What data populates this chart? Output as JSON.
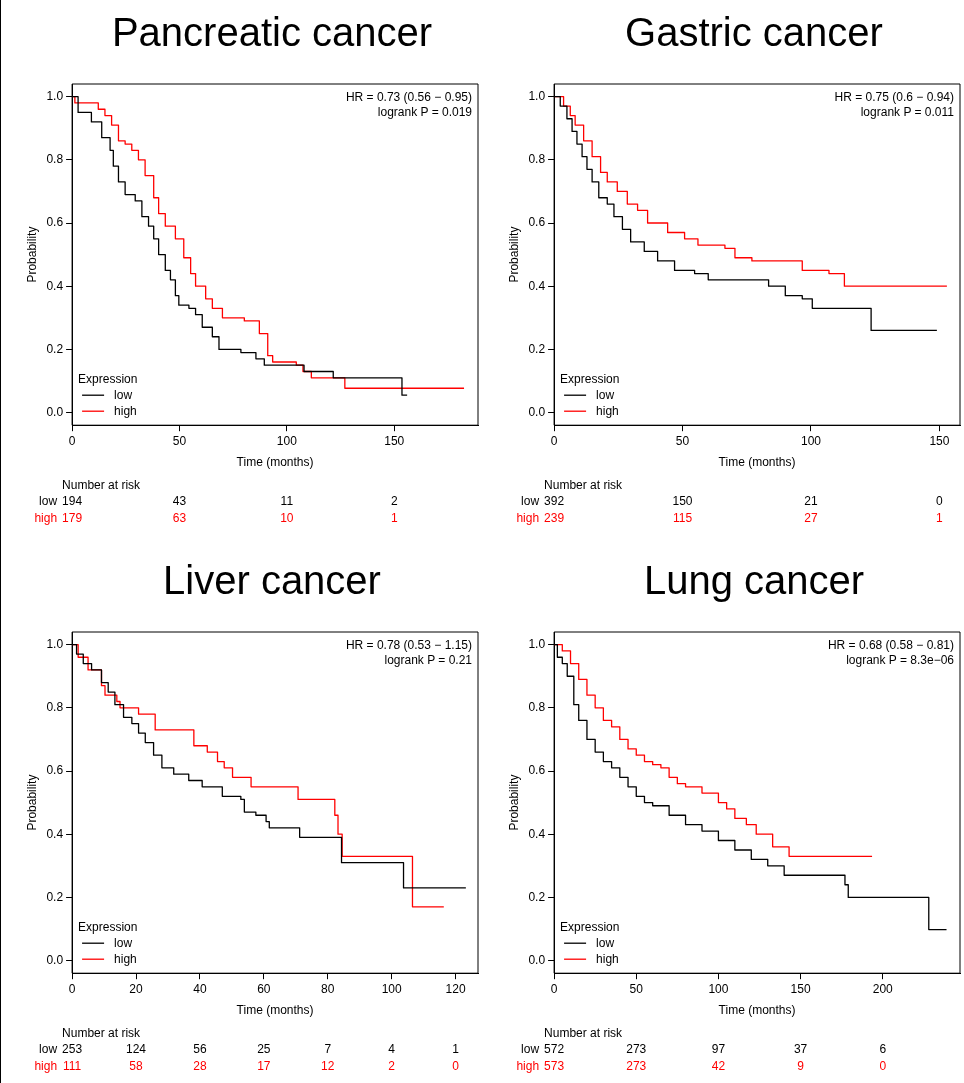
{
  "chart_data": [
    {
      "type": "step",
      "title": "Pancreatic cancer",
      "xlabel": "Time (months)",
      "ylabel": "Probability",
      "legend_title": "Expression",
      "legend": "bottom left",
      "xlim": [
        0,
        189
      ],
      "xticks": [
        0,
        50,
        100,
        150
      ],
      "ylim": [
        -0.04,
        1.04
      ],
      "yticks": [
        {
          "value": 0,
          "label": "0.0"
        },
        {
          "value": 0.2,
          "label": "0.2"
        },
        {
          "value": 0.4,
          "label": "0.4"
        },
        {
          "value": 0.6,
          "label": "0.6"
        },
        {
          "value": 0.8,
          "label": "0.8"
        },
        {
          "value": 1,
          "label": "1.0"
        }
      ],
      "series": [
        {
          "name": "low",
          "color": "#000000",
          "x": [
            0,
            2.8,
            9,
            13.8,
            17.7,
            19.2,
            21.6,
            24.7,
            29.4,
            32.5,
            35.6,
            38,
            40.3,
            43.4,
            45.8,
            48.1,
            49.7,
            54.4,
            57.5,
            60.6,
            65.3,
            68.4,
            78.6,
            85.6,
            89.5,
            108,
            121.6,
            153.6,
            156
          ],
          "values": [
            1,
            0.95,
            0.92,
            0.87,
            0.83,
            0.78,
            0.73,
            0.69,
            0.67,
            0.62,
            0.59,
            0.55,
            0.5,
            0.45,
            0.42,
            0.37,
            0.34,
            0.33,
            0.31,
            0.27,
            0.24,
            0.2,
            0.19,
            0.17,
            0.15,
            0.13,
            0.11,
            0.055,
            0.055
          ]
        },
        {
          "name": "high",
          "color": "#ff0000",
          "x": [
            0,
            1.3,
            12.2,
            15.3,
            18.4,
            21.6,
            24.7,
            27.8,
            30.9,
            34,
            38,
            40.3,
            43.4,
            48.1,
            52,
            55.2,
            57.5,
            62.2,
            65.3,
            70,
            80.2,
            87.2,
            91.1,
            93.4,
            104.4,
            107.5,
            111.4,
            127,
            182.5
          ],
          "values": [
            1,
            0.98,
            0.96,
            0.94,
            0.91,
            0.86,
            0.85,
            0.83,
            0.8,
            0.75,
            0.68,
            0.63,
            0.59,
            0.55,
            0.49,
            0.44,
            0.4,
            0.36,
            0.33,
            0.3,
            0.29,
            0.25,
            0.18,
            0.16,
            0.15,
            0.13,
            0.11,
            0.077,
            0.077
          ]
        }
      ],
      "annotations": [
        "HR = 0.73 (0.56 − 0.95)",
        "logrank P = 0.019",
        "Number at risk",
        "194",
        "43",
        "11",
        "2",
        "179",
        "63",
        "10",
        "1"
      ]
    },
    {
      "type": "step",
      "title": "Gastric cancer",
      "xlabel": "Time (months)",
      "ylabel": "Probability",
      "legend_title": "Expression",
      "legend": "bottom left",
      "xlim": [
        0,
        158
      ],
      "xticks": [
        0,
        50,
        100,
        150
      ],
      "ylim": [
        -0.04,
        1.04
      ],
      "yticks": [
        {
          "value": 0,
          "label": "0.0"
        },
        {
          "value": 0.2,
          "label": "0.2"
        },
        {
          "value": 0.4,
          "label": "0.4"
        },
        {
          "value": 0.6,
          "label": "0.6"
        },
        {
          "value": 0.8,
          "label": "0.8"
        },
        {
          "value": 1,
          "label": "1.0"
        }
      ],
      "series": [
        {
          "name": "low",
          "color": "#000000",
          "x": [
            0,
            2.4,
            5,
            7,
            8.9,
            10.9,
            12.8,
            14.8,
            17.4,
            20.7,
            23.3,
            26.6,
            29.8,
            35.1,
            40.3,
            46.9,
            54.7,
            60,
            77,
            83.5,
            90,
            96.6,
            100.5,
            123.4,
            149
          ],
          "values": [
            1,
            0.97,
            0.93,
            0.89,
            0.85,
            0.81,
            0.77,
            0.73,
            0.68,
            0.66,
            0.62,
            0.58,
            0.54,
            0.51,
            0.48,
            0.45,
            0.44,
            0.42,
            0.42,
            0.4,
            0.37,
            0.36,
            0.33,
            0.26,
            0.26
          ]
        },
        {
          "name": "high",
          "color": "#ff0000",
          "x": [
            0,
            3.7,
            6.3,
            8.2,
            11.5,
            14.8,
            18.1,
            20.7,
            24.6,
            28.5,
            32.5,
            36.4,
            44.2,
            50.8,
            56,
            66.5,
            70.4,
            77,
            96.6,
            107,
            113,
            152.9
          ],
          "values": [
            1,
            0.97,
            0.94,
            0.91,
            0.86,
            0.81,
            0.76,
            0.73,
            0.7,
            0.66,
            0.64,
            0.6,
            0.57,
            0.55,
            0.53,
            0.52,
            0.49,
            0.48,
            0.45,
            0.44,
            0.4,
            0.4
          ]
        }
      ],
      "annotations": [
        "HR = 0.75 (0.6 − 0.94)",
        "logrank P = 0.011",
        "Number at risk",
        "392",
        "150",
        "21",
        "0",
        "239",
        "115",
        "27",
        "1"
      ]
    },
    {
      "type": "step",
      "title": "Liver cancer",
      "xlabel": "Time (months)",
      "ylabel": "Probability",
      "legend_title": "Expression",
      "legend": "bottom left",
      "xlim": [
        0,
        127
      ],
      "xticks": [
        0,
        20,
        40,
        60,
        80,
        100,
        120
      ],
      "ylim": [
        -0.04,
        1.04
      ],
      "yticks": [
        {
          "value": 0,
          "label": "0.0"
        },
        {
          "value": 0.2,
          "label": "0.2"
        },
        {
          "value": 0.4,
          "label": "0.4"
        },
        {
          "value": 0.6,
          "label": "0.6"
        },
        {
          "value": 0.8,
          "label": "0.8"
        },
        {
          "value": 1,
          "label": "1.0"
        }
      ],
      "series": [
        {
          "name": "low",
          "color": "#000000",
          "x": [
            0,
            1.4,
            3.5,
            6.1,
            9.2,
            11.3,
            13.4,
            16.1,
            18.7,
            20.8,
            22.9,
            25.5,
            28.1,
            31.8,
            36.5,
            40.7,
            47,
            52.8,
            53.9,
            57.5,
            60.7,
            61.7,
            71.2,
            84.3,
            103.7,
            123.2
          ],
          "values": [
            1,
            0.97,
            0.94,
            0.92,
            0.88,
            0.85,
            0.81,
            0.77,
            0.75,
            0.72,
            0.69,
            0.65,
            0.61,
            0.59,
            0.57,
            0.55,
            0.52,
            0.51,
            0.47,
            0.46,
            0.44,
            0.42,
            0.39,
            0.31,
            0.23,
            0.23
          ]
        },
        {
          "name": "high",
          "color": "#ff0000",
          "x": [
            0,
            1.9,
            5,
            9.2,
            10.3,
            14,
            15,
            20.8,
            26,
            38.1,
            42.3,
            45.5,
            47.6,
            50.2,
            56,
            70.7,
            82.2,
            83.2,
            84.5,
            106.5,
            116.3
          ],
          "values": [
            1,
            0.96,
            0.92,
            0.87,
            0.84,
            0.82,
            0.8,
            0.78,
            0.73,
            0.68,
            0.66,
            0.63,
            0.61,
            0.58,
            0.55,
            0.51,
            0.46,
            0.4,
            0.33,
            0.17,
            0.17
          ]
        }
      ],
      "annotations": [
        "HR = 0.78 (0.53 − 1.15)",
        "logrank P = 0.21",
        "Number at risk",
        "253",
        "124",
        "56",
        "25",
        "7",
        "4",
        "1",
        "111",
        "58",
        "28",
        "17",
        "12",
        "2",
        "0"
      ]
    },
    {
      "type": "step",
      "title": "Lung cancer",
      "xlabel": "Time (months)",
      "ylabel": "Probability",
      "legend_title": "Expression",
      "legend": "bottom left",
      "xlim": [
        0,
        247
      ],
      "xticks": [
        0,
        50,
        100,
        150,
        200
      ],
      "ylim": [
        -0.04,
        1.04
      ],
      "yticks": [
        {
          "value": 0,
          "label": "0.0"
        },
        {
          "value": 0.2,
          "label": "0.2"
        },
        {
          "value": 0.4,
          "label": "0.4"
        },
        {
          "value": 0.6,
          "label": "0.6"
        },
        {
          "value": 0.8,
          "label": "0.8"
        },
        {
          "value": 1,
          "label": "1.0"
        }
      ],
      "series": [
        {
          "name": "low",
          "color": "#000000",
          "x": [
            0,
            2,
            5,
            8,
            12,
            15,
            20,
            25,
            30,
            35,
            40,
            45,
            50,
            55,
            60,
            70,
            80,
            90,
            100,
            110,
            120,
            130,
            140,
            175,
            177,
            179,
            228,
            238.8
          ],
          "values": [
            1,
            0.96,
            0.94,
            0.9,
            0.81,
            0.76,
            0.7,
            0.66,
            0.63,
            0.61,
            0.58,
            0.55,
            0.52,
            0.5,
            0.49,
            0.46,
            0.43,
            0.41,
            0.38,
            0.35,
            0.32,
            0.3,
            0.27,
            0.27,
            0.24,
            0.2,
            0.098,
            0.098
          ]
        },
        {
          "name": "high",
          "color": "#ff0000",
          "x": [
            0,
            5,
            10,
            15,
            20,
            25,
            30,
            35,
            40,
            45,
            50,
            55,
            60,
            65,
            70,
            75,
            80,
            90,
            100,
            105,
            110,
            117,
            123,
            133,
            143,
            193.5
          ],
          "values": [
            1,
            0.98,
            0.94,
            0.89,
            0.84,
            0.8,
            0.76,
            0.74,
            0.7,
            0.67,
            0.65,
            0.63,
            0.62,
            0.61,
            0.58,
            0.56,
            0.55,
            0.53,
            0.5,
            0.48,
            0.45,
            0.43,
            0.4,
            0.36,
            0.33,
            0.33
          ]
        }
      ],
      "annotations": [
        "HR = 0.68 (0.58 − 0.81)",
        "logrank P = 8.3e−06",
        "Number at risk",
        "572",
        "273",
        "97",
        "37",
        "6",
        "573",
        "273",
        "42",
        "9",
        "0"
      ]
    }
  ]
}
